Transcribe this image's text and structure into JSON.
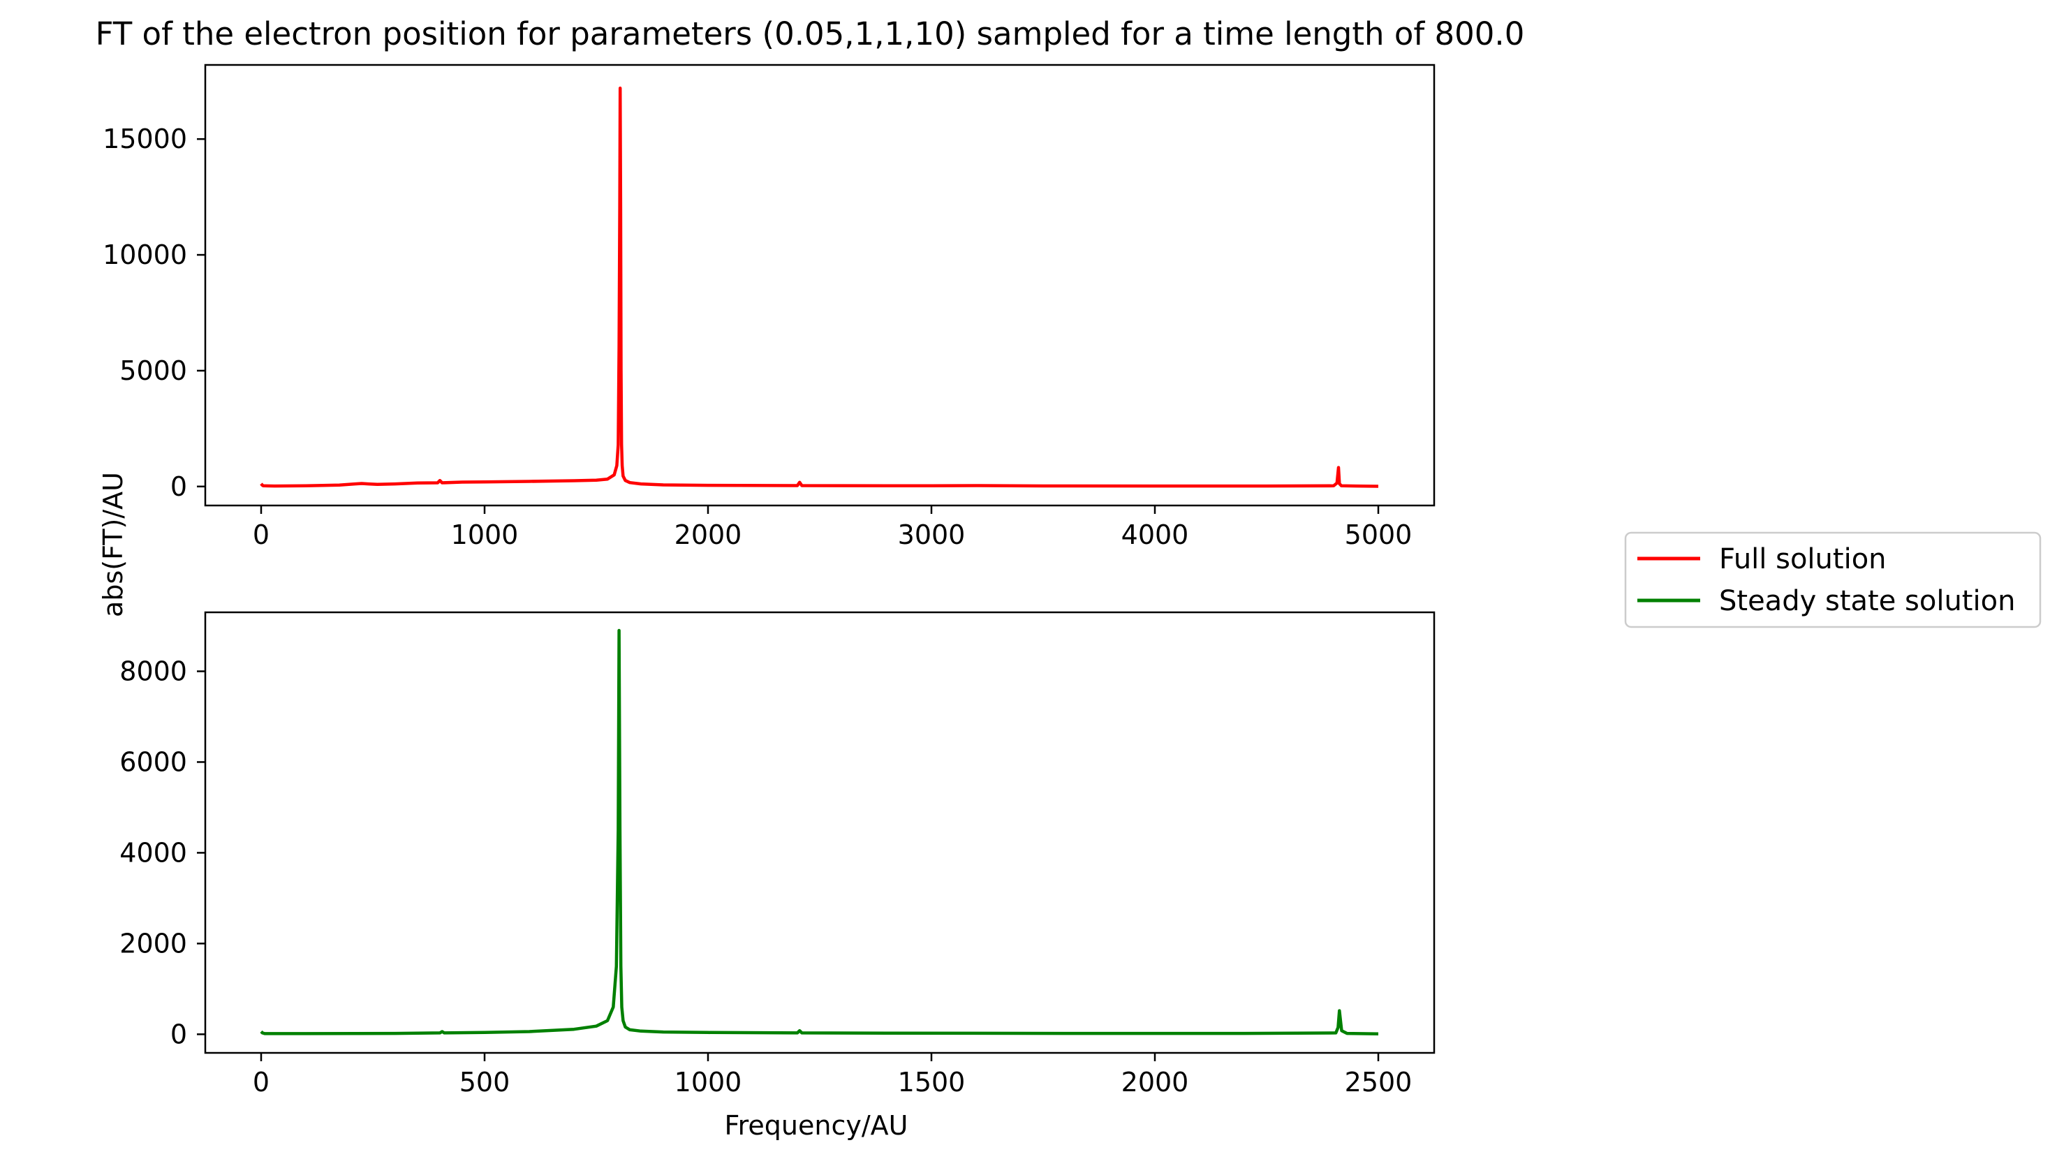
{
  "chart_data": {
    "title": "FT of the electron position for parameters (0.05,1,1,10) sampled for a time length of 800.0",
    "ylabel": "abs(FT)/AU",
    "xlabel": "Frequency/AU",
    "legend": {
      "placement": "right, outside plot area",
      "entries": [
        {
          "label": "Full solution",
          "color": "#ff0000"
        },
        {
          "label": "Steady state solution",
          "color": "#008000"
        }
      ]
    },
    "panels": [
      {
        "type": "line",
        "series_name": "Full solution",
        "color": "#ff0000",
        "xlim": [
          -250,
          5250
        ],
        "ylim": [
          -820,
          18200
        ],
        "xticks": [
          0,
          1000,
          2000,
          3000,
          4000,
          5000
        ],
        "yticks": [
          0,
          5000,
          10000,
          15000
        ],
        "x": [
          0,
          5,
          10,
          60,
          200,
          350,
          420,
          450,
          480,
          520,
          600,
          700,
          790,
          800,
          810,
          900,
          1000,
          1200,
          1400,
          1500,
          1550,
          1580,
          1592,
          1598,
          1602,
          1605,
          1607,
          1609,
          1611,
          1613,
          1616,
          1620,
          1630,
          1650,
          1700,
          1800,
          2000,
          2400,
          2410,
          2420,
          2600,
          3000,
          3210,
          3500,
          4000,
          4500,
          4800,
          4815,
          4822,
          4826,
          4835,
          4900,
          5000
        ],
        "y": [
          120,
          60,
          30,
          20,
          30,
          60,
          110,
          130,
          110,
          90,
          110,
          150,
          160,
          260,
          160,
          190,
          200,
          220,
          250,
          270,
          320,
          500,
          900,
          1800,
          6000,
          12000,
          17200,
          12000,
          5000,
          1800,
          900,
          450,
          260,
          170,
          110,
          70,
          50,
          40,
          180,
          40,
          35,
          30,
          40,
          25,
          20,
          20,
          30,
          150,
          820,
          120,
          30,
          20,
          10
        ]
      },
      {
        "type": "line",
        "series_name": "Steady state solution",
        "color": "#008000",
        "xlim": [
          -125,
          2625
        ],
        "ylim": [
          -410,
          9300
        ],
        "xticks": [
          0,
          500,
          1000,
          1500,
          2000,
          2500
        ],
        "yticks": [
          0,
          2000,
          4000,
          6000,
          8000
        ],
        "x": [
          0,
          3,
          8,
          100,
          300,
          400,
          405,
          410,
          500,
          600,
          700,
          750,
          775,
          788,
          795,
          799,
          801,
          803,
          805,
          807,
          810,
          815,
          825,
          850,
          900,
          1000,
          1200,
          1205,
          1210,
          1400,
          1800,
          2200,
          2405,
          2410,
          2413,
          2418,
          2430,
          2500
        ],
        "y": [
          60,
          30,
          15,
          15,
          20,
          30,
          60,
          30,
          40,
          60,
          110,
          180,
          300,
          600,
          1500,
          4500,
          8900,
          4500,
          1500,
          600,
          300,
          160,
          100,
          70,
          50,
          40,
          30,
          80,
          30,
          25,
          20,
          20,
          30,
          150,
          520,
          80,
          20,
          10
        ]
      }
    ]
  }
}
